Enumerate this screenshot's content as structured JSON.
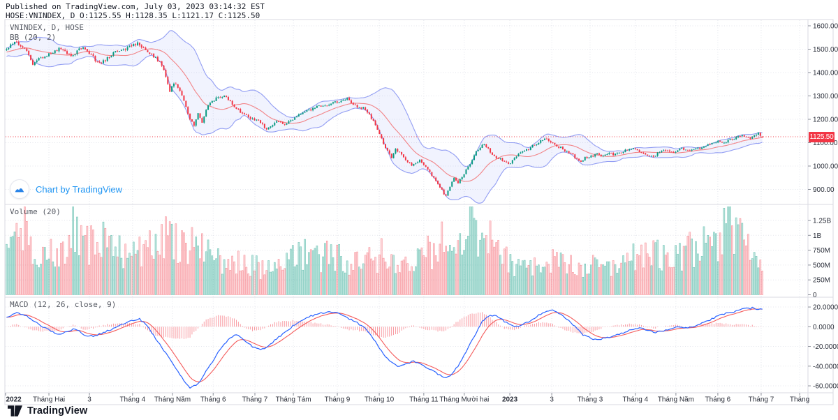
{
  "header": {
    "line1": "Published on TradingView.com, July 03, 2023 03:14:32 EST",
    "line2": "HOSE:VNINDEX, D O:1125.55 H:1128.35 L:1121.17 C:1125.50"
  },
  "price_pane": {
    "legend_symbol": "VNINDEX, D, HOSE",
    "legend_indicator": "BB (20, 2)"
  },
  "volume_pane": {
    "legend": "Volume (20)"
  },
  "macd_pane": {
    "legend": "MACD (12, 26, close, 9)"
  },
  "watermark": {
    "text": "Chart by TradingView"
  },
  "footer": {
    "brand": "TradingView"
  },
  "colors": {
    "up": "#089981",
    "down": "#f23645",
    "bb_line": "rgba(73,92,235,0.58)",
    "bb_fill": "rgba(73,92,235,0.075)",
    "bb_basis": "rgba(242,84,84,0.70)",
    "macd_line": "#2962ff",
    "signal_line": "#f45b5b",
    "hist": "rgba(242,54,69,0.55)",
    "price_line": "#f23645",
    "badge_bg": "#f23645",
    "grid": "#e3e5ec",
    "border": "#d8dae2",
    "axis_text": "#2a2e39",
    "tick": "#8a8e98",
    "vol_up_fill": "rgba(8,153,129,0.26)",
    "vol_up_stroke": "rgba(8,153,129,0.55)",
    "vol_down_fill": "rgba(242,54,69,0.20)",
    "vol_down_stroke": "rgba(242,54,69,0.55)"
  },
  "chart_data": {
    "type": "candlestick",
    "symbol": "VNINDEX",
    "interval": "D",
    "exchange": "HOSE",
    "title": "VNINDEX, D, HOSE",
    "current": {
      "open": 1125.55,
      "high": 1128.35,
      "low": 1121.17,
      "close": 1125.5
    },
    "days": 376,
    "legend_position": "top-left",
    "grid": true,
    "price_line": {
      "value": 1125.5,
      "label": "1125.50"
    },
    "indicators": {
      "bollinger": {
        "length": 20,
        "mult": 2
      },
      "macd": {
        "fast": 12,
        "slow": 26,
        "source": "close",
        "signal": 9
      },
      "volume_ma": 20
    },
    "price_axis": {
      "labels": [
        [
          "1600.00",
          1600
        ],
        [
          "1500.00",
          1500
        ],
        [
          "1400.00",
          1400
        ],
        [
          "1300.00",
          1300
        ],
        [
          "1200.00",
          1200
        ],
        [
          "1100.00",
          1100
        ],
        [
          "1000.00",
          1000
        ],
        [
          "900.00",
          900
        ]
      ],
      "range": [
        836,
        1627
      ]
    },
    "volume_axis": {
      "labels": [
        [
          "1.25B",
          1250
        ],
        [
          "1B",
          1000
        ],
        [
          "750M",
          750
        ],
        [
          "500M",
          500
        ],
        [
          "250M",
          250
        ],
        [
          "0",
          0
        ]
      ],
      "range_millions": [
        0,
        1520
      ]
    },
    "macd_axis": {
      "labels": [
        [
          "20.0000",
          20
        ],
        [
          "0.0000",
          0
        ],
        [
          "-20.0000",
          -20
        ],
        [
          "-40.0000",
          -40
        ],
        [
          "-60.0000",
          -60
        ]
      ],
      "range": [
        -68,
        28
      ]
    },
    "time_axis": {
      "labels": [
        {
          "t": "2022",
          "d": 0,
          "b": 1
        },
        {
          "t": "Tháng Hai",
          "d": 21.5
        },
        {
          "t": "3",
          "d": 41.6
        },
        {
          "t": "Tháng 4",
          "d": 63
        },
        {
          "t": "Tháng Năm",
          "d": 82.8
        },
        {
          "t": "Tháng 6",
          "d": 103
        },
        {
          "t": "Tháng 7",
          "d": 123.7
        },
        {
          "t": "Tháng Tám",
          "d": 142.8
        },
        {
          "t": "Tháng 9",
          "d": 164.6
        },
        {
          "t": "Tháng 10",
          "d": 185.4
        },
        {
          "t": "Tháng 11",
          "d": 207.5
        },
        {
          "t": "Tháng Mười hai",
          "d": 227.6
        },
        {
          "t": "2023",
          "d": 250.2,
          "b": 1
        },
        {
          "t": "3",
          "d": 271
        },
        {
          "t": "Tháng 3",
          "d": 290
        },
        {
          "t": "Tháng 4",
          "d": 312.5
        },
        {
          "t": "Tháng Năm",
          "d": 332.6
        },
        {
          "t": "Tháng 6",
          "d": 353.4
        },
        {
          "t": "Tháng 7",
          "d": 374.9
        },
        {
          "t": "Tháng",
          "d": 394
        }
      ]
    },
    "price_keyframes": [
      [
        -40,
        1480
      ],
      [
        -30,
        1442
      ],
      [
        -20,
        1468
      ],
      [
        -10,
        1492
      ],
      [
        -2,
        1498
      ],
      [
        0,
        1500
      ],
      [
        2,
        1522
      ],
      [
        5,
        1528
      ],
      [
        9,
        1505
      ],
      [
        13,
        1438
      ],
      [
        16,
        1462
      ],
      [
        20,
        1473
      ],
      [
        24,
        1495
      ],
      [
        27,
        1505
      ],
      [
        30,
        1480
      ],
      [
        33,
        1470
      ],
      [
        36,
        1498
      ],
      [
        39,
        1505
      ],
      [
        42,
        1476
      ],
      [
        45,
        1442
      ],
      [
        48,
        1448
      ],
      [
        51,
        1470
      ],
      [
        54,
        1490
      ],
      [
        57,
        1498
      ],
      [
        60,
        1505
      ],
      [
        63,
        1516
      ],
      [
        65,
        1524
      ],
      [
        68,
        1500
      ],
      [
        71,
        1482
      ],
      [
        74,
        1460
      ],
      [
        77,
        1432
      ],
      [
        79,
        1386
      ],
      [
        81,
        1322
      ],
      [
        83,
        1356
      ],
      [
        85,
        1340
      ],
      [
        87,
        1302
      ],
      [
        89,
        1252
      ],
      [
        91,
        1202
      ],
      [
        93,
        1172
      ],
      [
        95,
        1226
      ],
      [
        97,
        1186
      ],
      [
        99,
        1240
      ],
      [
        101,
        1268
      ],
      [
        104,
        1292
      ],
      [
        107,
        1300
      ],
      [
        110,
        1288
      ],
      [
        113,
        1256
      ],
      [
        116,
        1232
      ],
      [
        119,
        1218
      ],
      [
        122,
        1202
      ],
      [
        124,
        1197
      ],
      [
        127,
        1182
      ],
      [
        129,
        1152
      ],
      [
        131,
        1170
      ],
      [
        134,
        1196
      ],
      [
        137,
        1178
      ],
      [
        140,
        1188
      ],
      [
        143,
        1206
      ],
      [
        147,
        1226
      ],
      [
        151,
        1242
      ],
      [
        155,
        1256
      ],
      [
        159,
        1262
      ],
      [
        163,
        1272
      ],
      [
        166,
        1282
      ],
      [
        169,
        1288
      ],
      [
        171,
        1272
      ],
      [
        174,
        1254
      ],
      [
        177,
        1248
      ],
      [
        180,
        1222
      ],
      [
        183,
        1172
      ],
      [
        185,
        1132
      ],
      [
        187,
        1098
      ],
      [
        189,
        1066
      ],
      [
        191,
        1035
      ],
      [
        193,
        1070
      ],
      [
        195,
        1060
      ],
      [
        197,
        1038
      ],
      [
        199,
        1020
      ],
      [
        201,
        998
      ],
      [
        203,
        1012
      ],
      [
        205,
        1027
      ],
      [
        207,
        1002
      ],
      [
        209,
        986
      ],
      [
        211,
        962
      ],
      [
        213,
        938
      ],
      [
        215,
        912
      ],
      [
        217,
        882
      ],
      [
        218,
        874
      ],
      [
        220,
        912
      ],
      [
        222,
        946
      ],
      [
        224,
        928
      ],
      [
        226,
        952
      ],
      [
        228,
        986
      ],
      [
        230,
        1010
      ],
      [
        232,
        1048
      ],
      [
        234,
        1072
      ],
      [
        236,
        1086
      ],
      [
        237,
        1093
      ],
      [
        239,
        1072
      ],
      [
        241,
        1052
      ],
      [
        243,
        1036
      ],
      [
        245,
        1030
      ],
      [
        247,
        1022
      ],
      [
        249,
        1007
      ],
      [
        251,
        1022
      ],
      [
        253,
        1042
      ],
      [
        255,
        1056
      ],
      [
        257,
        1064
      ],
      [
        259,
        1072
      ],
      [
        261,
        1088
      ],
      [
        263,
        1098
      ],
      [
        265,
        1108
      ],
      [
        267,
        1117
      ],
      [
        269,
        1111
      ],
      [
        271,
        1096
      ],
      [
        273,
        1084
      ],
      [
        275,
        1078
      ],
      [
        277,
        1066
      ],
      [
        279,
        1057
      ],
      [
        281,
        1046
      ],
      [
        283,
        1030
      ],
      [
        285,
        1021
      ],
      [
        287,
        1035
      ],
      [
        289,
        1038
      ],
      [
        291,
        1043
      ],
      [
        293,
        1052
      ],
      [
        295,
        1046
      ],
      [
        297,
        1052
      ],
      [
        299,
        1058
      ],
      [
        301,
        1048
      ],
      [
        303,
        1053
      ],
      [
        305,
        1060
      ],
      [
        307,
        1066
      ],
      [
        309,
        1072
      ],
      [
        311,
        1080
      ],
      [
        313,
        1070
      ],
      [
        315,
        1058
      ],
      [
        317,
        1052
      ],
      [
        319,
        1046
      ],
      [
        321,
        1042
      ],
      [
        323,
        1055
      ],
      [
        325,
        1062
      ],
      [
        327,
        1068
      ],
      [
        329,
        1060
      ],
      [
        331,
        1062
      ],
      [
        333,
        1066
      ],
      [
        335,
        1075
      ],
      [
        337,
        1068
      ],
      [
        339,
        1064
      ],
      [
        341,
        1070
      ],
      [
        343,
        1075
      ],
      [
        345,
        1078
      ],
      [
        347,
        1090
      ],
      [
        349,
        1096
      ],
      [
        351,
        1100
      ],
      [
        353,
        1108
      ],
      [
        355,
        1104
      ],
      [
        357,
        1102
      ],
      [
        359,
        1116
      ],
      [
        361,
        1120
      ],
      [
        363,
        1126
      ],
      [
        365,
        1132
      ],
      [
        367,
        1128
      ],
      [
        369,
        1122
      ],
      [
        371,
        1136
      ],
      [
        373,
        1140
      ],
      [
        374,
        1133
      ],
      [
        375,
        1125.5
      ]
    ],
    "volume_keyframes_m": [
      [
        0,
        640
      ],
      [
        4,
        820
      ],
      [
        7,
        1280
      ],
      [
        12,
        900
      ],
      [
        16,
        700
      ],
      [
        20,
        620
      ],
      [
        24,
        760
      ],
      [
        28,
        820
      ],
      [
        31,
        900
      ],
      [
        34,
        1140
      ],
      [
        38,
        820
      ],
      [
        42,
        880
      ],
      [
        46,
        930
      ],
      [
        50,
        860
      ],
      [
        54,
        780
      ],
      [
        58,
        720
      ],
      [
        62,
        680
      ],
      [
        66,
        720
      ],
      [
        70,
        800
      ],
      [
        74,
        880
      ],
      [
        78,
        960
      ],
      [
        82,
        860
      ],
      [
        86,
        800
      ],
      [
        90,
        830
      ],
      [
        94,
        760
      ],
      [
        98,
        700
      ],
      [
        102,
        640
      ],
      [
        106,
        580
      ],
      [
        110,
        540
      ],
      [
        114,
        560
      ],
      [
        118,
        500
      ],
      [
        122,
        470
      ],
      [
        126,
        440
      ],
      [
        130,
        470
      ],
      [
        134,
        520
      ],
      [
        138,
        560
      ],
      [
        142,
        600
      ],
      [
        146,
        630
      ],
      [
        150,
        660
      ],
      [
        154,
        690
      ],
      [
        158,
        660
      ],
      [
        162,
        630
      ],
      [
        166,
        600
      ],
      [
        170,
        560
      ],
      [
        174,
        530
      ],
      [
        178,
        560
      ],
      [
        182,
        620
      ],
      [
        186,
        680
      ],
      [
        190,
        650
      ],
      [
        194,
        610
      ],
      [
        198,
        570
      ],
      [
        202,
        590
      ],
      [
        206,
        650
      ],
      [
        210,
        710
      ],
      [
        214,
        820
      ],
      [
        218,
        920
      ],
      [
        222,
        1000
      ],
      [
        226,
        1080
      ],
      [
        229,
        1200
      ],
      [
        231,
        1380
      ],
      [
        233,
        1220
      ],
      [
        235,
        1080
      ],
      [
        238,
        940
      ],
      [
        242,
        820
      ],
      [
        246,
        700
      ],
      [
        250,
        600
      ],
      [
        254,
        480
      ],
      [
        258,
        430
      ],
      [
        262,
        470
      ],
      [
        266,
        530
      ],
      [
        270,
        560
      ],
      [
        274,
        520
      ],
      [
        278,
        480
      ],
      [
        282,
        460
      ],
      [
        286,
        450
      ],
      [
        290,
        490
      ],
      [
        294,
        530
      ],
      [
        298,
        560
      ],
      [
        302,
        545
      ],
      [
        306,
        565
      ],
      [
        310,
        600
      ],
      [
        314,
        625
      ],
      [
        318,
        660
      ],
      [
        322,
        645
      ],
      [
        326,
        680
      ],
      [
        330,
        700
      ],
      [
        334,
        725
      ],
      [
        338,
        745
      ],
      [
        342,
        765
      ],
      [
        346,
        805
      ],
      [
        350,
        845
      ],
      [
        354,
        905
      ],
      [
        356,
        1020
      ],
      [
        358,
        1270
      ],
      [
        360,
        1060
      ],
      [
        362,
        960
      ],
      [
        364,
        1100
      ],
      [
        366,
        1000
      ],
      [
        368,
        905
      ],
      [
        370,
        850
      ],
      [
        372,
        800
      ],
      [
        374,
        710
      ],
      [
        375,
        620
      ]
    ],
    "macd_keyframes": [
      [
        -40,
        2
      ],
      [
        -20,
        6
      ],
      [
        -10,
        8
      ],
      [
        -4,
        10
      ],
      [
        0,
        10
      ],
      [
        5,
        14
      ],
      [
        9,
        12
      ],
      [
        12,
        8
      ],
      [
        18,
        0
      ],
      [
        25,
        -8
      ],
      [
        30,
        -5
      ],
      [
        34,
        -2
      ],
      [
        40,
        -10
      ],
      [
        44,
        -9
      ],
      [
        48,
        -6
      ],
      [
        55,
        0
      ],
      [
        62,
        6
      ],
      [
        66,
        8
      ],
      [
        70,
        0
      ],
      [
        75,
        -15
      ],
      [
        80,
        -30
      ],
      [
        85,
        -45
      ],
      [
        88,
        -55
      ],
      [
        91,
        -62
      ],
      [
        95,
        -58
      ],
      [
        100,
        -42
      ],
      [
        105,
        -26
      ],
      [
        110,
        -13
      ],
      [
        114,
        -8
      ],
      [
        118,
        -14
      ],
      [
        122,
        -20
      ],
      [
        126,
        -24
      ],
      [
        130,
        -20
      ],
      [
        134,
        -12
      ],
      [
        138,
        -6
      ],
      [
        144,
        4
      ],
      [
        150,
        10
      ],
      [
        156,
        14
      ],
      [
        162,
        15
      ],
      [
        166,
        13
      ],
      [
        170,
        8
      ],
      [
        174,
        4
      ],
      [
        178,
        -2
      ],
      [
        182,
        -12
      ],
      [
        186,
        -25
      ],
      [
        190,
        -35
      ],
      [
        194,
        -40
      ],
      [
        198,
        -38
      ],
      [
        202,
        -35
      ],
      [
        206,
        -38
      ],
      [
        210,
        -43
      ],
      [
        214,
        -48
      ],
      [
        217,
        -52
      ],
      [
        220,
        -50
      ],
      [
        224,
        -40
      ],
      [
        228,
        -25
      ],
      [
        232,
        -10
      ],
      [
        236,
        5
      ],
      [
        240,
        12
      ],
      [
        244,
        10
      ],
      [
        248,
        4
      ],
      [
        252,
        0
      ],
      [
        256,
        2
      ],
      [
        260,
        6
      ],
      [
        264,
        12
      ],
      [
        268,
        16
      ],
      [
        271,
        17
      ],
      [
        274,
        14
      ],
      [
        278,
        8
      ],
      [
        282,
        0
      ],
      [
        286,
        -8
      ],
      [
        290,
        -12
      ],
      [
        294,
        -13
      ],
      [
        298,
        -11
      ],
      [
        302,
        -9
      ],
      [
        306,
        -6
      ],
      [
        310,
        -3
      ],
      [
        314,
        -1
      ],
      [
        318,
        -4
      ],
      [
        322,
        -6
      ],
      [
        326,
        -4
      ],
      [
        330,
        -2
      ],
      [
        334,
        0
      ],
      [
        338,
        -1
      ],
      [
        342,
        1
      ],
      [
        346,
        4
      ],
      [
        350,
        8
      ],
      [
        354,
        12
      ],
      [
        358,
        14
      ],
      [
        362,
        16
      ],
      [
        366,
        18
      ],
      [
        370,
        19
      ],
      [
        373,
        18
      ],
      [
        375,
        17
      ]
    ]
  }
}
